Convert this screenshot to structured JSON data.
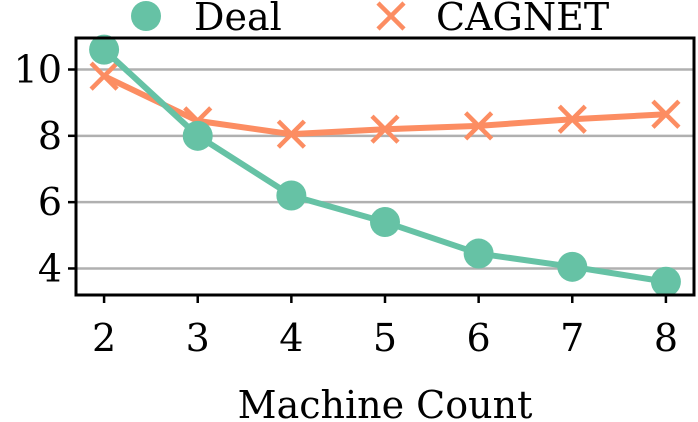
{
  "chart_data": {
    "type": "line",
    "title": "",
    "xlabel": "Machine Count",
    "ylabel": "",
    "x": [
      2,
      3,
      4,
      5,
      6,
      7,
      8
    ],
    "x_ticks": [
      "2",
      "3",
      "4",
      "5",
      "6",
      "7",
      "8"
    ],
    "y_ticks": [
      "4",
      "6",
      "8",
      "10"
    ],
    "xlim": [
      1.7,
      8.3
    ],
    "ylim": [
      3.2,
      10.95
    ],
    "grid": "horizontal",
    "legend": "top",
    "series": [
      {
        "name": "Deal",
        "marker": "circle",
        "color": "#66c2a5",
        "values": [
          10.6,
          8.0,
          6.2,
          5.4,
          4.45,
          4.05,
          3.6
        ]
      },
      {
        "name": "CAGNET",
        "marker": "x",
        "color": "#fc8d62",
        "values": [
          9.8,
          8.45,
          8.05,
          8.2,
          8.3,
          8.5,
          8.65
        ]
      }
    ]
  }
}
